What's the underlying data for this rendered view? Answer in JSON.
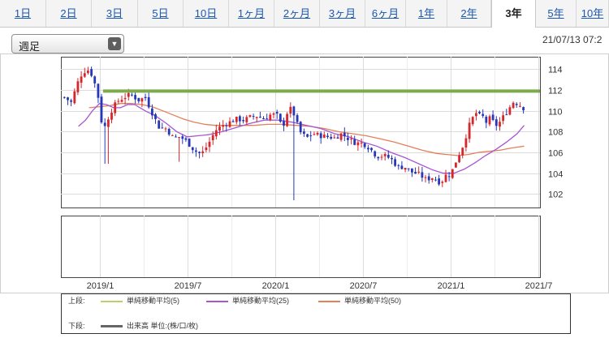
{
  "tabs": [
    {
      "label": "1日",
      "active": false
    },
    {
      "label": "2日",
      "active": false
    },
    {
      "label": "3日",
      "active": false
    },
    {
      "label": "5日",
      "active": false
    },
    {
      "label": "10日",
      "active": false
    },
    {
      "label": "1ヶ月",
      "active": false
    },
    {
      "label": "2ヶ月",
      "active": false
    },
    {
      "label": "3ヶ月",
      "active": false
    },
    {
      "label": "6ヶ月",
      "active": false
    },
    {
      "label": "1年",
      "active": false
    },
    {
      "label": "2年",
      "active": false
    },
    {
      "label": "3年",
      "active": true
    },
    {
      "label": "5年",
      "active": false
    },
    {
      "label": "10年",
      "active": false
    }
  ],
  "period_select": {
    "value": "週足"
  },
  "datetime": "21/07/13 07:2",
  "legend": {
    "upper_label": "上段:",
    "lower_label": "下段:",
    "items": [
      {
        "name": "単純移動平均(5)",
        "color": "#bcd06a"
      },
      {
        "name": "単純移動平均(25)",
        "color": "#a855d1"
      },
      {
        "name": "単純移動平均(50)",
        "color": "#e2805a"
      }
    ],
    "volume": {
      "name": "出来高 単位:(株/口/枚)",
      "color": "#666666"
    }
  },
  "colors": {
    "up": "#d8262c",
    "down": "#2638b8",
    "resistance": "#7daa4a"
  },
  "chart_data": {
    "type": "candlestick",
    "y_ticks": [
      102,
      104,
      106,
      108,
      110,
      112,
      114
    ],
    "ylim": [
      100.7,
      115.2
    ],
    "x_ticks": [
      {
        "label": "2019/1",
        "t": 1.0
      },
      {
        "label": "2019/7",
        "t": 1.5
      },
      {
        "label": "2020/1",
        "t": 2.0
      },
      {
        "label": "2020/7",
        "t": 2.5
      },
      {
        "label": "2021/1",
        "t": 3.0
      },
      {
        "label": "2021/7",
        "t": 3.5
      }
    ],
    "x_range": [
      0.78,
      3.51
    ],
    "resistance_line": 111.9,
    "anchors": [
      [
        0.8,
        111.3
      ],
      [
        0.84,
        110.8
      ],
      [
        0.87,
        112.5
      ],
      [
        0.9,
        113.6
      ],
      [
        0.93,
        114.0
      ],
      [
        0.96,
        113.4
      ],
      [
        0.99,
        111.6
      ],
      [
        1.02,
        108.0
      ],
      [
        1.06,
        109.8
      ],
      [
        1.1,
        110.9
      ],
      [
        1.14,
        111.3
      ],
      [
        1.18,
        111.6
      ],
      [
        1.22,
        111.0
      ],
      [
        1.26,
        111.3
      ],
      [
        1.3,
        109.8
      ],
      [
        1.34,
        108.4
      ],
      [
        1.38,
        108.3
      ],
      [
        1.42,
        107.4
      ],
      [
        1.46,
        107.5
      ],
      [
        1.5,
        107.0
      ],
      [
        1.54,
        106.2
      ],
      [
        1.58,
        105.8
      ],
      [
        1.62,
        106.8
      ],
      [
        1.66,
        108.1
      ],
      [
        1.7,
        108.6
      ],
      [
        1.74,
        108.9
      ],
      [
        1.78,
        109.2
      ],
      [
        1.82,
        109.1
      ],
      [
        1.86,
        109.4
      ],
      [
        1.9,
        109.5
      ],
      [
        1.94,
        109.2
      ],
      [
        1.98,
        109.7
      ],
      [
        2.02,
        109.5
      ],
      [
        2.04,
        108.2
      ],
      [
        2.08,
        110.4
      ],
      [
        2.11,
        109.6
      ],
      [
        2.14,
        108.0
      ],
      [
        2.18,
        107.4
      ],
      [
        2.22,
        107.8
      ],
      [
        2.26,
        107.6
      ],
      [
        2.3,
        107.5
      ],
      [
        2.34,
        107.4
      ],
      [
        2.38,
        107.8
      ],
      [
        2.42,
        107.3
      ],
      [
        2.46,
        106.9
      ],
      [
        2.5,
        106.9
      ],
      [
        2.54,
        106.4
      ],
      [
        2.58,
        105.6
      ],
      [
        2.62,
        105.7
      ],
      [
        2.66,
        105.4
      ],
      [
        2.7,
        104.6
      ],
      [
        2.74,
        104.6
      ],
      [
        2.78,
        104.1
      ],
      [
        2.82,
        103.9
      ],
      [
        2.86,
        103.4
      ],
      [
        2.9,
        103.6
      ],
      [
        2.94,
        103.1
      ],
      [
        2.96,
        103.4
      ],
      [
        2.98,
        104.0
      ],
      [
        3.0,
        103.8
      ],
      [
        3.02,
        104.7
      ],
      [
        3.04,
        105.5
      ],
      [
        3.06,
        106.2
      ],
      [
        3.08,
        107.0
      ],
      [
        3.1,
        108.4
      ],
      [
        3.12,
        109.0
      ],
      [
        3.14,
        109.9
      ],
      [
        3.16,
        109.5
      ],
      [
        3.18,
        109.6
      ],
      [
        3.2,
        108.8
      ],
      [
        3.22,
        109.3
      ],
      [
        3.24,
        109.0
      ],
      [
        3.26,
        108.6
      ],
      [
        3.28,
        108.9
      ],
      [
        3.3,
        109.4
      ],
      [
        3.32,
        109.9
      ],
      [
        3.34,
        110.4
      ],
      [
        3.36,
        110.9
      ],
      [
        3.38,
        110.7
      ],
      [
        3.4,
        110.5
      ],
      [
        3.42,
        110.2
      ]
    ],
    "spikes": [
      {
        "t": 1.04,
        "low": 104.9
      },
      {
        "t": 2.11,
        "low": 101.4
      },
      {
        "t": 1.46,
        "low": 105.1
      }
    ],
    "sma25": [
      [
        0.88,
        108.5
      ],
      [
        0.92,
        109.1
      ],
      [
        0.96,
        110.0
      ],
      [
        1.0,
        110.7
      ],
      [
        1.04,
        110.6
      ],
      [
        1.08,
        110.3
      ],
      [
        1.12,
        110.3
      ],
      [
        1.16,
        110.6
      ],
      [
        1.2,
        110.6
      ],
      [
        1.26,
        110.0
      ],
      [
        1.32,
        109.5
      ],
      [
        1.38,
        108.8
      ],
      [
        1.44,
        108.0
      ],
      [
        1.5,
        107.5
      ],
      [
        1.56,
        107.6
      ],
      [
        1.62,
        107.7
      ],
      [
        1.7,
        108.0
      ],
      [
        1.78,
        108.4
      ],
      [
        1.86,
        108.8
      ],
      [
        1.94,
        109.1
      ],
      [
        2.02,
        109.1
      ],
      [
        2.1,
        108.9
      ],
      [
        2.18,
        108.6
      ],
      [
        2.26,
        108.3
      ],
      [
        2.34,
        107.8
      ],
      [
        2.42,
        107.5
      ],
      [
        2.5,
        107.0
      ],
      [
        2.58,
        106.6
      ],
      [
        2.66,
        106.0
      ],
      [
        2.74,
        105.5
      ],
      [
        2.82,
        104.9
      ],
      [
        2.9,
        104.3
      ],
      [
        2.96,
        104.0
      ],
      [
        3.02,
        104.0
      ],
      [
        3.08,
        104.4
      ],
      [
        3.14,
        105.0
      ],
      [
        3.2,
        105.7
      ],
      [
        3.26,
        106.3
      ],
      [
        3.32,
        107.0
      ],
      [
        3.38,
        107.8
      ],
      [
        3.42,
        108.6
      ]
    ],
    "sma50": [
      [
        0.94,
        110.3
      ],
      [
        1.0,
        110.4
      ],
      [
        1.06,
        110.5
      ],
      [
        1.12,
        110.7
      ],
      [
        1.18,
        110.7
      ],
      [
        1.24,
        110.6
      ],
      [
        1.3,
        110.4
      ],
      [
        1.36,
        110.0
      ],
      [
        1.42,
        109.6
      ],
      [
        1.48,
        109.2
      ],
      [
        1.54,
        108.9
      ],
      [
        1.6,
        108.7
      ],
      [
        1.66,
        108.6
      ],
      [
        1.72,
        108.6
      ],
      [
        1.8,
        108.6
      ],
      [
        1.88,
        108.6
      ],
      [
        1.96,
        108.7
      ],
      [
        2.04,
        108.7
      ],
      [
        2.12,
        108.6
      ],
      [
        2.2,
        108.5
      ],
      [
        2.28,
        108.3
      ],
      [
        2.36,
        108.0
      ],
      [
        2.44,
        107.8
      ],
      [
        2.52,
        107.6
      ],
      [
        2.6,
        107.3
      ],
      [
        2.68,
        107.0
      ],
      [
        2.76,
        106.6
      ],
      [
        2.84,
        106.2
      ],
      [
        2.92,
        105.9
      ],
      [
        2.98,
        105.8
      ],
      [
        3.04,
        105.7
      ],
      [
        3.1,
        105.8
      ],
      [
        3.16,
        106.0
      ],
      [
        3.22,
        106.1
      ],
      [
        3.28,
        106.2
      ],
      [
        3.34,
        106.4
      ],
      [
        3.42,
        106.6
      ]
    ]
  }
}
